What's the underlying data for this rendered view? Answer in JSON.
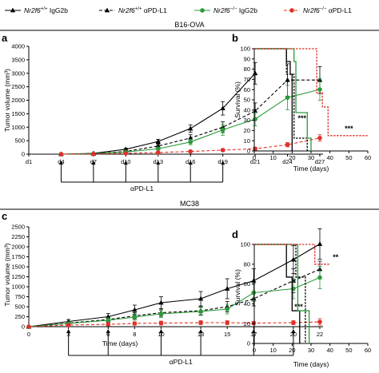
{
  "legend": [
    {
      "label_pre": "Nr2f6",
      "sup": "+/+",
      "label_post": " IgG2b",
      "color": "#000000",
      "dash": "solid",
      "marker": "triangle"
    },
    {
      "label_pre": "Nr2f6",
      "sup": "+/+",
      "label_post": " αPD-L1",
      "color": "#000000",
      "dash": "dashed",
      "marker": "triangle"
    },
    {
      "label_pre": "Nr2f6",
      "sup": "−/−",
      "label_post": " IgG2b",
      "color": "#2a9a3a",
      "dash": "solid",
      "marker": "circle"
    },
    {
      "label_pre": "Nr2f6",
      "sup": "−/−",
      "label_post": " αPD-L1",
      "color": "#e0302a",
      "dash": "dashed",
      "marker": "circle"
    }
  ],
  "sections": {
    "top": "B16-OVA",
    "bottom": "MC38"
  },
  "treatment_label": "αPD-L1",
  "chart_data": [
    {
      "id": "a",
      "letter": "a",
      "type": "line",
      "ylabel": "Tumor volume (mm³)",
      "xlabel": "",
      "ylim": [
        0,
        4000
      ],
      "yticks": [
        0,
        500,
        1000,
        1500,
        2000,
        2500,
        3000,
        3500,
        4000
      ],
      "xtick_labels": [
        "d1",
        "d4",
        "d7",
        "d10",
        "d13",
        "d16",
        "d19",
        "d21",
        "d24",
        "d27"
      ],
      "xlim": [
        0,
        9
      ],
      "treatment_x": [
        1,
        2,
        3,
        4,
        5,
        6
      ],
      "series": [
        {
          "x": [
            1,
            2,
            3,
            4,
            5,
            6,
            7
          ],
          "y": [
            0,
            30,
            180,
            470,
            950,
            1700,
            3000
          ],
          "err": [
            0,
            10,
            40,
            80,
            140,
            250,
            400
          ]
        },
        {
          "x": [
            1,
            2,
            3,
            4,
            5,
            6,
            7,
            8,
            9
          ],
          "y": [
            0,
            20,
            100,
            300,
            600,
            1000,
            1600,
            2750,
            2750
          ],
          "err": [
            0,
            10,
            30,
            60,
            120,
            200,
            300,
            600,
            500
          ]
        },
        {
          "x": [
            1,
            2,
            3,
            4,
            5,
            6,
            7,
            8,
            9
          ],
          "y": [
            0,
            15,
            80,
            200,
            450,
            900,
            1300,
            2100,
            2400
          ],
          "err": [
            0,
            10,
            20,
            50,
            100,
            200,
            250,
            450,
            400
          ]
        },
        {
          "x": [
            1,
            2,
            3,
            4,
            5,
            6,
            7,
            8,
            9
          ],
          "y": [
            0,
            5,
            30,
            60,
            100,
            150,
            200,
            350,
            600
          ],
          "err": [
            0,
            5,
            10,
            20,
            30,
            50,
            60,
            80,
            120
          ]
        }
      ],
      "annotation": "***",
      "annotation_xy": [
        8.45,
        1250
      ]
    },
    {
      "id": "b",
      "letter": "b",
      "type": "line",
      "ylabel": "Survival (%)",
      "xlabel": "Time (days)",
      "xlim": [
        0,
        60
      ],
      "xticks": [
        0,
        10,
        20,
        30,
        40,
        50,
        60
      ],
      "ylim": [
        0,
        100
      ],
      "yticks": [
        0,
        10,
        20,
        30,
        40,
        50,
        60,
        70,
        80,
        90,
        100
      ],
      "survival": [
        {
          "steps": [
            [
              0,
              100
            ],
            [
              17,
              100
            ],
            [
              17,
              87.5
            ],
            [
              19,
              87.5
            ],
            [
              19,
              75
            ],
            [
              20,
              75
            ],
            [
              20,
              0
            ]
          ]
        },
        {
          "steps": [
            [
              0,
              100
            ],
            [
              17,
              100
            ],
            [
              17,
              75
            ],
            [
              21,
              75
            ],
            [
              21,
              12.5
            ],
            [
              28,
              12.5
            ],
            [
              28,
              0
            ]
          ]
        },
        {
          "steps": [
            [
              0,
              100
            ],
            [
              21,
              100
            ],
            [
              21,
              87.5
            ],
            [
              22,
              87.5
            ],
            [
              22,
              37.5
            ],
            [
              28,
              37.5
            ],
            [
              28,
              12.5
            ],
            [
              30,
              12.5
            ],
            [
              30,
              0
            ]
          ]
        },
        {
          "steps": [
            [
              0,
              100
            ],
            [
              33,
              100
            ],
            [
              33,
              57
            ],
            [
              36,
              57
            ],
            [
              36,
              43
            ],
            [
              39,
              43
            ],
            [
              39,
              15
            ],
            [
              60,
              15
            ]
          ]
        }
      ],
      "annotation": "***",
      "annotation_xy": [
        50,
        22
      ]
    },
    {
      "id": "c",
      "letter": "c",
      "type": "line",
      "ylabel": "Tumor volume (mm³)",
      "xlabel": "Time (days)",
      "ylim": [
        0,
        2500
      ],
      "yticks": [
        0,
        250,
        500,
        750,
        1000,
        1250,
        1500,
        1750,
        2000,
        2250,
        2500
      ],
      "xticks": [
        0,
        3,
        6,
        8,
        10,
        13,
        15,
        17,
        20,
        22
      ],
      "xlim": [
        0,
        22
      ],
      "treatment_x": [
        3,
        6,
        10,
        13,
        17,
        20
      ],
      "series": [
        {
          "x": [
            0,
            3,
            6,
            8,
            10,
            13,
            15,
            17,
            20,
            22
          ],
          "y": [
            0,
            130,
            250,
            420,
            600,
            700,
            950,
            1150,
            1680,
            2070
          ],
          "err": [
            0,
            50,
            80,
            120,
            150,
            180,
            250,
            300,
            350,
            380
          ]
        },
        {
          "x": [
            0,
            3,
            6,
            8,
            10,
            13,
            15,
            17,
            20,
            22
          ],
          "y": [
            0,
            90,
            180,
            270,
            350,
            400,
            500,
            700,
            1150,
            1440
          ],
          "err": [
            0,
            40,
            60,
            80,
            90,
            100,
            130,
            180,
            300,
            200
          ]
        },
        {
          "x": [
            0,
            3,
            6,
            8,
            10,
            13,
            15,
            17,
            20,
            22
          ],
          "y": [
            0,
            80,
            160,
            240,
            320,
            380,
            440,
            850,
            950,
            1230
          ],
          "err": [
            0,
            40,
            60,
            80,
            90,
            100,
            120,
            220,
            250,
            280
          ]
        },
        {
          "x": [
            0,
            3,
            6,
            8,
            10,
            13,
            15,
            17,
            20,
            22
          ],
          "y": [
            0,
            40,
            60,
            80,
            90,
            100,
            100,
            90,
            100,
            120
          ],
          "err": [
            0,
            30,
            40,
            40,
            50,
            50,
            50,
            40,
            50,
            80
          ]
        }
      ],
      "annotation": "***",
      "annotation_xy": [
        20.4,
        440
      ]
    },
    {
      "id": "d",
      "letter": "d",
      "type": "line",
      "ylabel": "Survival (%)",
      "xlabel": "Time (days)",
      "xlim": [
        0,
        60
      ],
      "xticks": [
        0,
        10,
        20,
        30,
        40,
        50,
        60
      ],
      "ylim": [
        0,
        100
      ],
      "yticks": [
        0,
        20,
        40,
        60,
        80,
        100
      ],
      "survival": [
        {
          "steps": [
            [
              0,
              100
            ],
            [
              17,
              100
            ],
            [
              17,
              67
            ],
            [
              20,
              67
            ],
            [
              20,
              33
            ],
            [
              24,
              33
            ],
            [
              24,
              0
            ]
          ]
        },
        {
          "steps": [
            [
              0,
              100
            ],
            [
              22,
              100
            ],
            [
              22,
              67
            ],
            [
              27,
              67
            ],
            [
              27,
              0
            ]
          ]
        },
        {
          "steps": [
            [
              0,
              100
            ],
            [
              23,
              100
            ],
            [
              23,
              33
            ],
            [
              29,
              33
            ],
            [
              29,
              0
            ]
          ]
        },
        {
          "steps": [
            [
              0,
              100
            ],
            [
              32,
              100
            ],
            [
              32,
              80
            ],
            [
              40,
              80
            ]
          ]
        }
      ],
      "annotation": "**",
      "annotation_xy": [
        43,
        87
      ]
    }
  ]
}
